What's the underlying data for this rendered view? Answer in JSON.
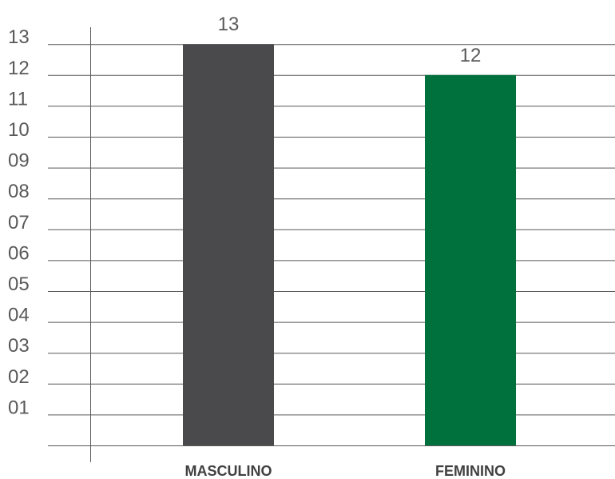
{
  "chart_data": {
    "type": "bar",
    "categories": [
      "MASCULINO",
      "FEMININO"
    ],
    "values": [
      13,
      12
    ],
    "data_labels": [
      "13",
      "12"
    ],
    "bar_colors": [
      "#4a4a4c",
      "#00703c"
    ],
    "y_tick_labels": [
      "01",
      "02",
      "03",
      "04",
      "05",
      "06",
      "07",
      "08",
      "09",
      "10",
      "11",
      "12",
      "13"
    ],
    "ylim": [
      0,
      13
    ],
    "grid": true,
    "gridline_color": "#595959",
    "title": "",
    "xlabel": "",
    "ylabel": ""
  }
}
